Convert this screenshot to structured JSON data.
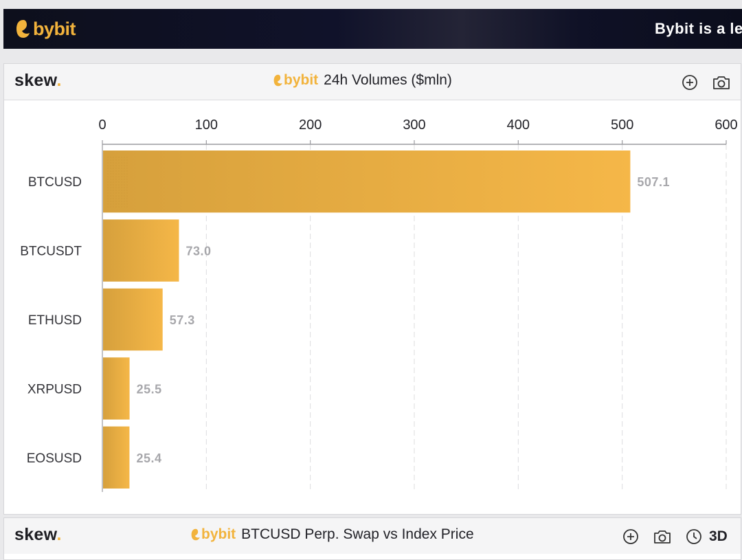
{
  "banner": {
    "logo_text": "bybit",
    "tagline": "Bybit is a le"
  },
  "panel1": {
    "brand": "skew",
    "brand_dot": ".",
    "mini_logo_text": "bybit",
    "title": "24h Volumes ($mln)",
    "icons": [
      "zoom-in-icon",
      "camera-icon"
    ]
  },
  "panel2": {
    "brand": "skew",
    "brand_dot": ".",
    "mini_logo_text": "bybit",
    "title": "BTCUSD Perp. Swap vs Index Price",
    "icons": [
      "zoom-in-icon",
      "camera-icon",
      "clock-icon"
    ],
    "range_label": "3D"
  },
  "colors": {
    "accent": "#f2b33c",
    "bar_dark": "#d99e3a",
    "bar_light": "#f4b646"
  },
  "chart_data": {
    "type": "bar",
    "orientation": "horizontal",
    "title": "24h Volumes ($mln)",
    "categories": [
      "BTCUSD",
      "BTCUSDT",
      "ETHUSD",
      "XRPUSD",
      "EOSUSD"
    ],
    "values": [
      507.1,
      73.0,
      57.3,
      25.5,
      25.4
    ],
    "value_labels": [
      "507.1",
      "73.0",
      "57.3",
      "25.5",
      "25.4"
    ],
    "xlim": [
      0,
      600
    ],
    "xticks": [
      0,
      100,
      200,
      300,
      400,
      500,
      600
    ],
    "xaxis_position": "top",
    "grid": true
  }
}
